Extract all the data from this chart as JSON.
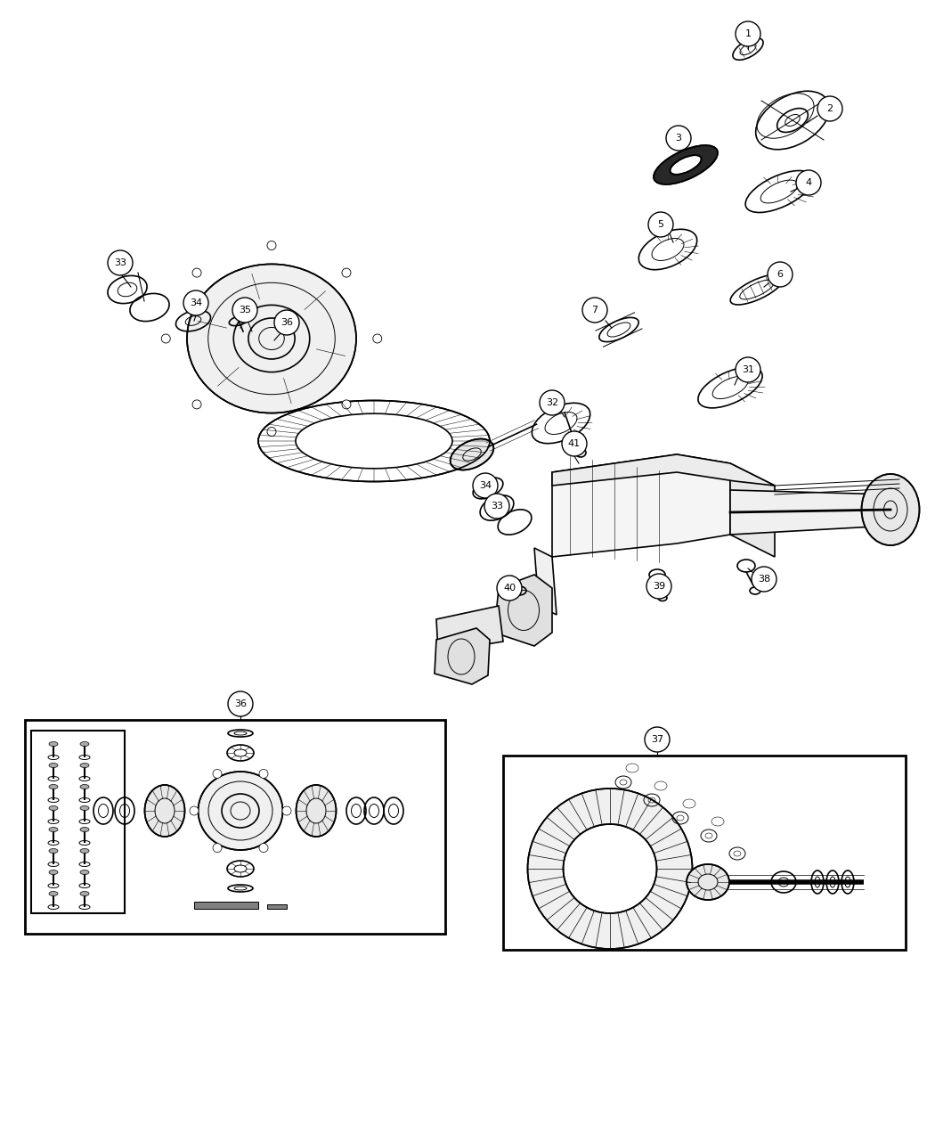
{
  "bg_color": "#ffffff",
  "line_color": "#000000",
  "fig_width": 10.5,
  "fig_height": 12.75,
  "dpi": 100
}
